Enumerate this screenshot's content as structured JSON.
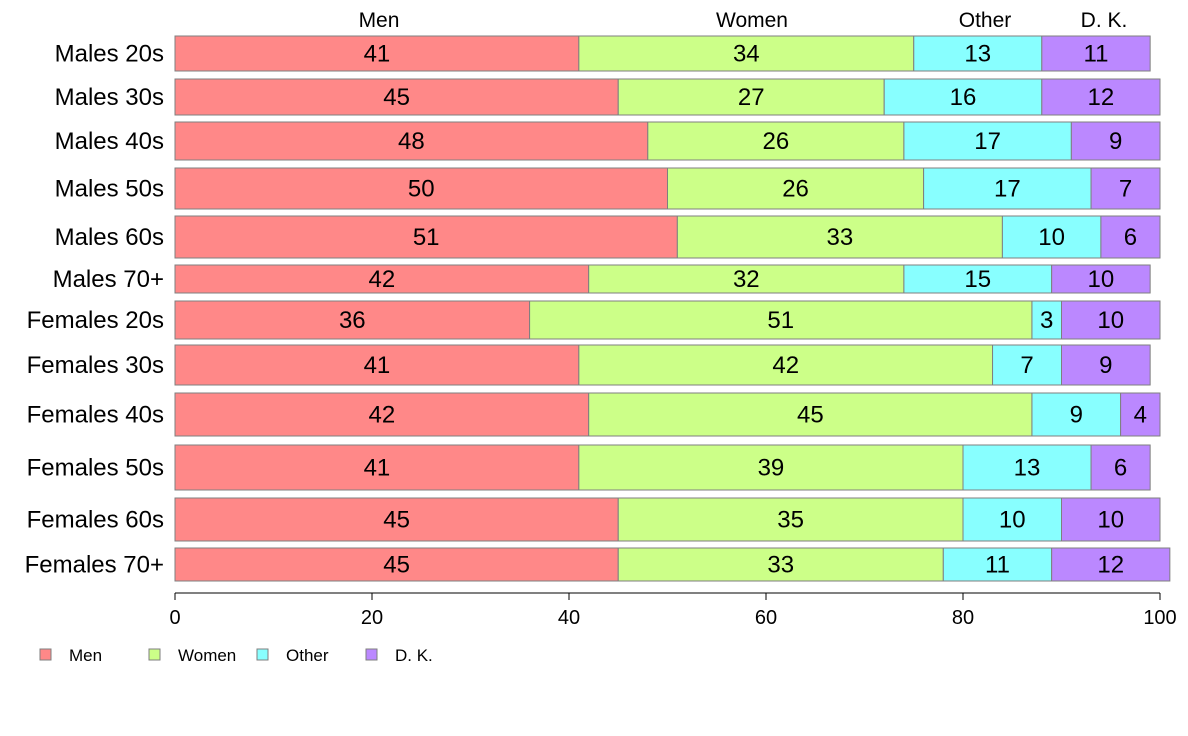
{
  "chart_data": {
    "type": "bar",
    "orientation": "horizontal",
    "stacked": true,
    "categories": [
      "Males 20s",
      "Males 30s",
      "Males 40s",
      "Males 50s",
      "Males 60s",
      "Males 70+",
      "Females 20s",
      "Females 30s",
      "Females 40s",
      "Females 50s",
      "Females 60s",
      "Females 70+"
    ],
    "series": [
      {
        "name": "Men",
        "color": "#ff8888",
        "values": [
          41,
          45,
          48,
          50,
          51,
          42,
          36,
          41,
          42,
          41,
          45,
          45
        ]
      },
      {
        "name": "Women",
        "color": "#ccff88",
        "values": [
          34,
          27,
          26,
          26,
          33,
          32,
          51,
          42,
          45,
          39,
          35,
          33
        ]
      },
      {
        "name": "Other",
        "color": "#88ffff",
        "values": [
          13,
          16,
          17,
          17,
          10,
          15,
          3,
          7,
          9,
          13,
          10,
          11
        ]
      },
      {
        "name": "D. K.",
        "color": "#bb88ff",
        "values": [
          11,
          12,
          9,
          7,
          6,
          10,
          10,
          9,
          4,
          6,
          10,
          12
        ]
      }
    ],
    "top_labels": [
      "Men",
      "Women",
      "Other",
      "D. K."
    ],
    "xlim": [
      0,
      100
    ],
    "xticks": [
      "0",
      "20",
      "40",
      "60",
      "80",
      "100"
    ],
    "legend": {
      "position": "bottom-left",
      "entries": [
        "Men",
        "Women",
        "Other",
        "D. K."
      ]
    },
    "grid": false
  }
}
